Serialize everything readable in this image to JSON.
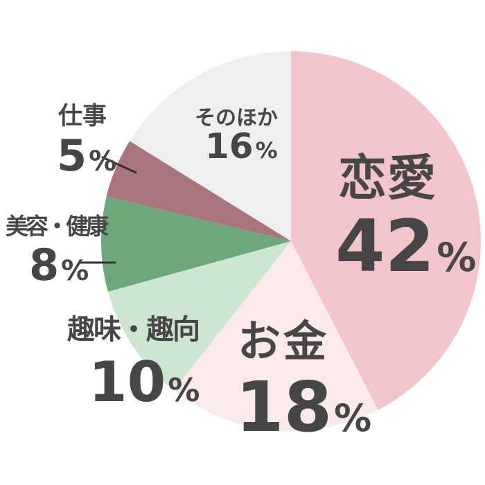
{
  "style": {
    "background": "#ffffff",
    "text_color": "#464646",
    "leader_line_color": "#323232"
  },
  "chart_data": {
    "type": "pie",
    "title": "",
    "start_angle_deg": 0,
    "direction": "clockwise",
    "legend": "none",
    "slices": [
      {
        "label": "恋愛",
        "value": 42,
        "unit": "%",
        "color": "#f2c5cd"
      },
      {
        "label": "お金",
        "value": 18,
        "unit": "%",
        "color": "#fbe9ec"
      },
      {
        "label": "趣味・趣向",
        "value": 10,
        "unit": "%",
        "color": "#cce6d1"
      },
      {
        "label": "美容・健康",
        "value": 8,
        "unit": "%",
        "color": "#6ca87a"
      },
      {
        "label": "仕事",
        "value": 5,
        "unit": "%",
        "color": "#a9757c"
      },
      {
        "label": "そのほか",
        "value": 16,
        "unit": "%",
        "color": "#efefef"
      }
    ]
  }
}
